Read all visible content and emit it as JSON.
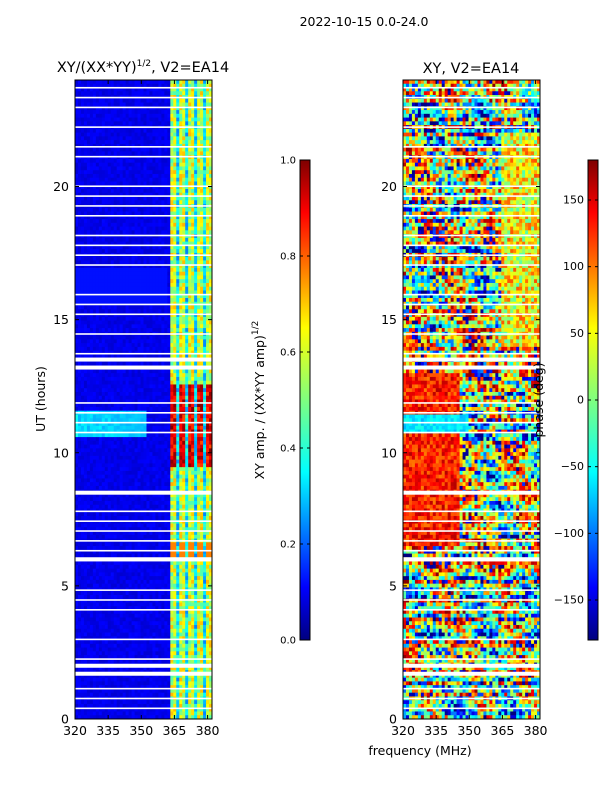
{
  "figure": {
    "suptitle": "2022-10-15 0.0-24.0",
    "xlabel": "frequency (MHz)"
  },
  "chart_data": [
    {
      "type": "heatmap",
      "title": "XY/(XX*YY)",
      "title_power": "1/2",
      "title_suffix": ", V2=EA14",
      "xlabel": "",
      "ylabel": "UT (hours)",
      "xlim": [
        320,
        382
      ],
      "ylim": [
        0,
        24
      ],
      "xticks": [
        320,
        335,
        350,
        365,
        380
      ],
      "yticks": [
        0,
        5,
        10,
        15,
        20
      ],
      "colorbar": {
        "label": "XY amp. / (XX*YY amp)",
        "label_power": "1/2",
        "range": [
          0.0,
          1.0
        ],
        "ticks": [
          "0.0",
          "0.2",
          "0.4",
          "0.6",
          "0.8",
          "1.0"
        ],
        "tick_values": [
          0.0,
          0.2,
          0.4,
          0.6,
          0.8,
          1.0
        ],
        "colormap": "jet"
      },
      "high_signal_channels_mhz": [
        365,
        369,
        373,
        377,
        381
      ],
      "rfi_band_hours": [
        10.6,
        11.6
      ],
      "flagged_hours": [
        1.7,
        2.0,
        6.0,
        8.5,
        13.2,
        13.5
      ]
    },
    {
      "type": "heatmap",
      "title": "XY, V2=EA14",
      "xlabel": "",
      "ylabel": "",
      "xlim": [
        320,
        382
      ],
      "ylim": [
        0,
        24
      ],
      "xticks": [
        320,
        335,
        350,
        365,
        380
      ],
      "yticks": [
        0,
        5,
        10,
        15,
        20
      ],
      "colorbar": {
        "label": "phase (deg)",
        "range": [
          -180,
          180
        ],
        "ticks": [
          "150",
          "100",
          "50",
          "0",
          "−50",
          "−100",
          "−150"
        ],
        "tick_values": [
          150,
          100,
          50,
          0,
          -50,
          -100,
          -150
        ],
        "colormap": "jet"
      },
      "flagged_hours": [
        1.7,
        2.0,
        6.0,
        8.5,
        13.2,
        13.5
      ]
    }
  ]
}
